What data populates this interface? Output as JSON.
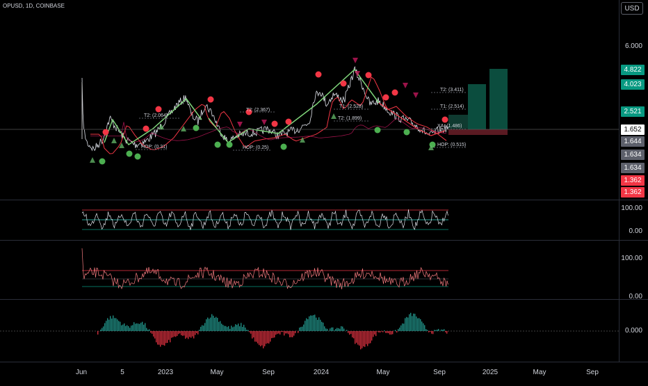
{
  "header": {
    "symbol_line": "OPUSD, 1D, COINBASE",
    "currency_button": "USD"
  },
  "main_price_axis": {
    "ticks": [
      "6.000"
    ]
  },
  "price_tags": [
    {
      "label": "4.822",
      "color": "#089981"
    },
    {
      "label": "4.023",
      "color": "#089981"
    },
    {
      "label": "2.521",
      "color": "#089981"
    },
    {
      "label": "1.652",
      "color": "#ffffff",
      "text_color": "#000000"
    },
    {
      "label": "1.644",
      "color": "#5d606b"
    },
    {
      "label": "1.634",
      "color": "#5d606b"
    },
    {
      "label": "1.634",
      "color": "#5d606b"
    },
    {
      "label": "1.362",
      "color": "#f23645"
    },
    {
      "label": "1.362",
      "color": "#f23645"
    }
  ],
  "pane1_axis": {
    "ticks": [
      "100.00",
      "0.00"
    ]
  },
  "pane2_axis": {
    "ticks": [
      "100.00",
      "0.00"
    ]
  },
  "pane3_axis": {
    "ticks": [
      "0.000"
    ]
  },
  "x_axis": {
    "labels": [
      "Jun",
      "5",
      "2023",
      "May",
      "Sep",
      "2024",
      "May",
      "Sep",
      "2025",
      "May",
      "Sep"
    ]
  },
  "annotations": {
    "labels": [
      "T2: (2.064)",
      "T2: (2.367)",
      "T2: (3.411)",
      "T1: (2.514)",
      "T1: (2.528)",
      "T2: (1.899)",
      "XA: (1.486)",
      "HOP: (0.515)",
      "HOP: (0.25)",
      "HOP: (0.31)"
    ]
  },
  "colors": {
    "bull": "#089981",
    "bear": "#f23645",
    "grid": "#2a2e39",
    "pattern_leg": "#7fd47a"
  }
}
